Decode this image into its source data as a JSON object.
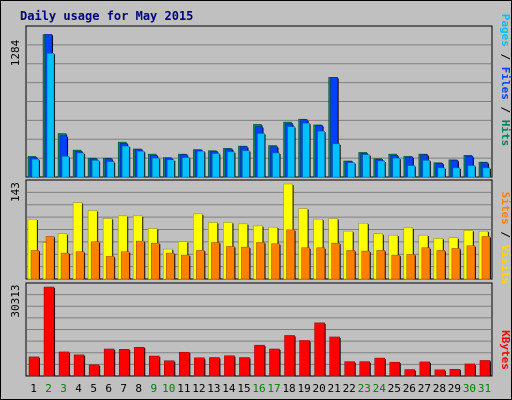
{
  "chart_data": [
    {
      "type": "bar",
      "title": "Daily usage for May 2015",
      "y_max_label": "1284",
      "legend": [
        "Pages",
        "Files",
        "Hits"
      ],
      "legend_colors": [
        "#00c0ff",
        "#0040ff",
        "#00805f"
      ],
      "categories": [
        "1",
        "2",
        "3",
        "4",
        "5",
        "6",
        "7",
        "8",
        "9",
        "10",
        "11",
        "12",
        "13",
        "14",
        "15",
        "16",
        "17",
        "18",
        "19",
        "20",
        "21",
        "22",
        "23",
        "24",
        "25",
        "26",
        "27",
        "28",
        "29",
        "30",
        "31"
      ],
      "weekend_days": [
        "2",
        "3",
        "9",
        "10",
        "16",
        "17",
        "23",
        "24",
        "30",
        "31"
      ],
      "ylim": [
        0,
        1284
      ],
      "series": [
        {
          "name": "Hits",
          "color": "#008060",
          "values": [
            180,
            1245,
            380,
            235,
            165,
            165,
            305,
            245,
            200,
            170,
            200,
            240,
            230,
            250,
            270,
            460,
            275,
            480,
            505,
            455,
            870,
            140,
            215,
            160,
            200,
            180,
            200,
            125,
            150,
            190,
            130
          ]
        },
        {
          "name": "Files",
          "color": "#0040ff",
          "values": [
            170,
            1245,
            360,
            225,
            160,
            160,
            295,
            240,
            190,
            165,
            195,
            235,
            225,
            245,
            265,
            440,
            265,
            465,
            500,
            450,
            870,
            135,
            205,
            155,
            190,
            175,
            195,
            120,
            145,
            180,
            125
          ]
        },
        {
          "name": "Pages",
          "color": "#00c0ff",
          "values": [
            155,
            1080,
            180,
            210,
            145,
            135,
            270,
            225,
            165,
            150,
            170,
            225,
            205,
            220,
            230,
            380,
            210,
            440,
            470,
            400,
            290,
            125,
            195,
            140,
            165,
            100,
            145,
            80,
            80,
            100,
            80
          ]
        }
      ],
      "grid": true
    },
    {
      "type": "bar",
      "y_max_label": "143",
      "legend": [
        "Sites",
        "Visits"
      ],
      "legend_colors": [
        "#ff8000",
        "#ffd700"
      ],
      "categories": [
        "1",
        "2",
        "3",
        "4",
        "5",
        "6",
        "7",
        "8",
        "9",
        "10",
        "11",
        "12",
        "13",
        "14",
        "15",
        "16",
        "17",
        "18",
        "19",
        "20",
        "21",
        "22",
        "23",
        "24",
        "25",
        "26",
        "27",
        "28",
        "29",
        "30",
        "31"
      ],
      "ylim": [
        0,
        143
      ],
      "series": [
        {
          "name": "Visits",
          "color": "#ffff00",
          "values": [
            90,
            55,
            68,
            115,
            103,
            91,
            95,
            95,
            76,
            45,
            56,
            98,
            85,
            85,
            83,
            80,
            78,
            143,
            106,
            90,
            91,
            72,
            84,
            68,
            66,
            77,
            66,
            61,
            62,
            73,
            72
          ]
        },
        {
          "name": "Sites",
          "color": "#ff8000",
          "values": [
            43,
            64,
            39,
            41,
            56,
            34,
            41,
            57,
            54,
            39,
            36,
            43,
            55,
            49,
            48,
            55,
            53,
            74,
            47,
            47,
            54,
            43,
            42,
            43,
            36,
            37,
            47,
            43,
            46,
            50,
            64
          ]
        }
      ],
      "grid": true
    },
    {
      "type": "bar",
      "y_max_label": "30313",
      "legend": [
        "KBytes"
      ],
      "legend_colors": [
        "#ff0000"
      ],
      "categories": [
        "1",
        "2",
        "3",
        "4",
        "5",
        "6",
        "7",
        "8",
        "9",
        "10",
        "11",
        "12",
        "13",
        "14",
        "15",
        "16",
        "17",
        "18",
        "19",
        "20",
        "21",
        "22",
        "23",
        "24",
        "25",
        "26",
        "27",
        "28",
        "29",
        "30",
        "31"
      ],
      "ylim": [
        0,
        30313
      ],
      "series": [
        {
          "name": "KBytes",
          "color": "#ff0000",
          "values": [
            6500,
            30313,
            8200,
            7200,
            3800,
            9200,
            9100,
            9800,
            6800,
            5200,
            8100,
            6200,
            6300,
            6900,
            6300,
            10500,
            9200,
            13800,
            12100,
            18100,
            13300,
            4900,
            4900,
            6100,
            4700,
            2200,
            4800,
            2100,
            2300,
            4100,
            5300
          ]
        }
      ],
      "grid": true
    }
  ]
}
